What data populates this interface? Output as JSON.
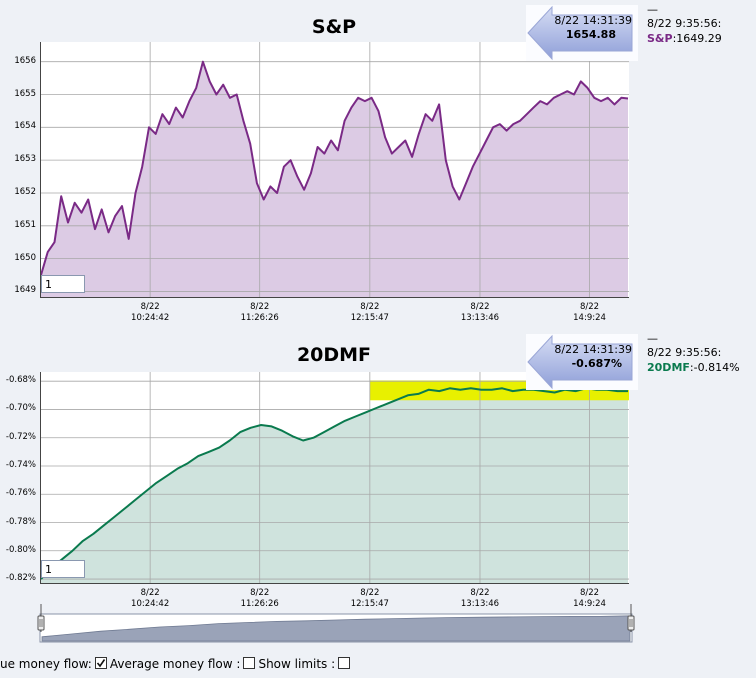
{
  "chart_data": [
    {
      "type": "area",
      "title": "S&P",
      "ylim": [
        1648.8,
        1656.6
      ],
      "yticks": [
        "1656",
        "1655",
        "1654",
        "1653",
        "1652",
        "1651",
        "1650",
        "1649"
      ],
      "ytick_values": [
        1656,
        1655,
        1654,
        1653,
        1652,
        1651,
        1650,
        1649
      ],
      "xticks": [
        {
          "date": "8/22",
          "time": "10:24:42"
        },
        {
          "date": "8/22",
          "time": "11:26:26"
        },
        {
          "date": "8/22",
          "time": "12:15:47"
        },
        {
          "date": "8/22",
          "time": "13:13:46"
        },
        {
          "date": "8/22",
          "time": "14:9:24"
        }
      ],
      "grid": true,
      "color": "#7a2a86",
      "fill": "#dccbe4",
      "series": [
        {
          "values": [
            1649.5,
            1650.2,
            1650.5,
            1651.9,
            1651.1,
            1651.7,
            1651.4,
            1651.8,
            1650.9,
            1651.5,
            1650.8,
            1651.3,
            1651.6,
            1650.6,
            1652.0,
            1652.8,
            1654.0,
            1653.8,
            1654.4,
            1654.1,
            1654.6,
            1654.3,
            1654.8,
            1655.2,
            1656.0,
            1655.4,
            1655.0,
            1655.3,
            1654.9,
            1655.0,
            1654.2,
            1653.5,
            1652.3,
            1651.8,
            1652.2,
            1652.0,
            1652.8,
            1653.0,
            1652.5,
            1652.1,
            1652.6,
            1653.4,
            1653.2,
            1653.6,
            1653.3,
            1654.2,
            1654.6,
            1654.9,
            1654.8,
            1654.9,
            1654.5,
            1653.7,
            1653.2,
            1653.4,
            1653.6,
            1653.1,
            1653.8,
            1654.4,
            1654.2,
            1654.7,
            1653.0,
            1652.2,
            1651.8,
            1652.3,
            1652.8,
            1653.2,
            1653.6,
            1654.0,
            1654.1,
            1653.9,
            1654.1,
            1654.2,
            1654.4,
            1654.6,
            1654.8,
            1654.7,
            1654.9,
            1655.0,
            1655.1,
            1655.0,
            1655.4,
            1655.2,
            1654.9,
            1654.8,
            1654.9,
            1654.7,
            1654.9,
            1654.88
          ]
        }
      ],
      "hover": {
        "time": "8/22 14:31:39",
        "value": "1654.88"
      },
      "legend": {
        "marker": "—",
        "time": "8/22 9:35:56:",
        "name": "S&P",
        "value": "1649.29"
      },
      "input_value": "1"
    },
    {
      "type": "area",
      "title": "20DMF",
      "ylim": [
        -0.8235,
        -0.6735
      ],
      "yticks": [
        "-0.68%",
        "-0.70%",
        "-0.72%",
        "-0.74%",
        "-0.76%",
        "-0.78%",
        "-0.80%",
        "-0.82%"
      ],
      "ytick_values": [
        -0.68,
        -0.7,
        -0.72,
        -0.74,
        -0.76,
        -0.78,
        -0.8,
        -0.82
      ],
      "xticks": [
        {
          "date": "8/22",
          "time": "10:24:42"
        },
        {
          "date": "8/22",
          "time": "11:26:26"
        },
        {
          "date": "8/22",
          "time": "12:15:47"
        },
        {
          "date": "8/22",
          "time": "13:13:46"
        },
        {
          "date": "8/22",
          "time": "14:9:24"
        }
      ],
      "grid": true,
      "color": "#0a7a4e",
      "fill": "#cfe3dd",
      "highlight": {
        "from": "12:15:47",
        "to": "end",
        "color": "#e8f000"
      },
      "series": [
        {
          "values": [
            -0.82,
            -0.812,
            -0.806,
            -0.8,
            -0.793,
            -0.788,
            -0.782,
            -0.776,
            -0.77,
            -0.764,
            -0.758,
            -0.752,
            -0.747,
            -0.742,
            -0.738,
            -0.733,
            -0.73,
            -0.727,
            -0.722,
            -0.716,
            -0.713,
            -0.711,
            -0.712,
            -0.715,
            -0.719,
            -0.722,
            -0.72,
            -0.716,
            -0.712,
            -0.708,
            -0.705,
            -0.702,
            -0.699,
            -0.696,
            -0.693,
            -0.69,
            -0.689,
            -0.686,
            -0.687,
            -0.685,
            -0.686,
            -0.685,
            -0.686,
            -0.686,
            -0.685,
            -0.687,
            -0.686,
            -0.686,
            -0.687,
            -0.688,
            -0.686,
            -0.687,
            -0.685,
            -0.686,
            -0.686,
            -0.687,
            -0.687
          ]
        }
      ],
      "hover": {
        "time": "8/22 14:31:39",
        "value": "-0.687%"
      },
      "legend": {
        "marker": "—",
        "time": "8/22 9:35:56:",
        "name": "20DMF",
        "value": "-0.814%"
      },
      "input_value": "1"
    }
  ],
  "controls": {
    "value_money_flow_label": "ue money flow:",
    "value_money_flow_checked": true,
    "average_money_flow_label": "Average money flow :",
    "average_money_flow_checked": false,
    "show_limits_label": "Show limits :",
    "show_limits_checked": false
  },
  "navigator": {
    "series": [
      0.15,
      0.25,
      0.35,
      0.42,
      0.5,
      0.55,
      0.62,
      0.66,
      0.7,
      0.72,
      0.75,
      0.78,
      0.8,
      0.82,
      0.84,
      0.85,
      0.86,
      0.87,
      0.88,
      0.88,
      0.9
    ]
  }
}
